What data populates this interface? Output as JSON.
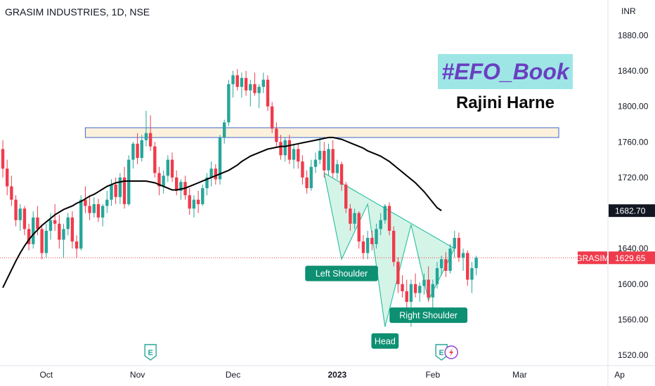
{
  "header": {
    "title": "GRASIM INDUSTRIES, 1D, NSE",
    "currency": "INR"
  },
  "overlay_text": {
    "hashtag": "#EFO_Book",
    "author": "Rajini Harne"
  },
  "colors": {
    "up": "#26a69a",
    "down": "#ef3b4b",
    "ma": "#000000",
    "zone_fill": "#fbf1dc",
    "zone_border": "#3e66cc",
    "pattern_fill": "#b2ebd6",
    "pattern_line": "#34c3a4",
    "price_tag": "#ef3b4b",
    "ma_tag": "#131722",
    "label_bg": "#0d8f72"
  },
  "chart_data": {
    "type": "candlestick",
    "symbol": "GRASIM",
    "last_price": "1629.65",
    "ma_last": "1682.70",
    "y_ticks": [
      "1880.00",
      "1840.00",
      "1800.00",
      "1760.00",
      "1720.00",
      "1680.00",
      "1640.00",
      "1600.00",
      "1560.00",
      "1520.00"
    ],
    "y_tick_values": [
      1880,
      1840,
      1800,
      1760,
      1720,
      1680,
      1640,
      1600,
      1560,
      1520
    ],
    "ylim": [
      1513,
      1900
    ],
    "x_ticks": [
      {
        "label": "Oct",
        "bar": 10
      },
      {
        "label": "Nov",
        "bar": 31
      },
      {
        "label": "Dec",
        "bar": 53
      },
      {
        "label": "2023",
        "bar": 77
      },
      {
        "label": "Feb",
        "bar": 99
      },
      {
        "label": "Mar",
        "bar": 119
      },
      {
        "label": "Ap",
        "bar": 142
      }
    ],
    "ohlc": [
      [
        1752,
        1762,
        1720,
        1730
      ],
      [
        1730,
        1740,
        1700,
        1710
      ],
      [
        1710,
        1722,
        1688,
        1695
      ],
      [
        1695,
        1700,
        1665,
        1672
      ],
      [
        1672,
        1690,
        1660,
        1685
      ],
      [
        1685,
        1688,
        1655,
        1662
      ],
      [
        1662,
        1668,
        1638,
        1645
      ],
      [
        1645,
        1682,
        1640,
        1675
      ],
      [
        1675,
        1688,
        1655,
        1662
      ],
      [
        1662,
        1665,
        1628,
        1635
      ],
      [
        1635,
        1668,
        1630,
        1660
      ],
      [
        1660,
        1680,
        1650,
        1672
      ],
      [
        1672,
        1690,
        1660,
        1668
      ],
      [
        1668,
        1678,
        1640,
        1650
      ],
      [
        1650,
        1668,
        1630,
        1662
      ],
      [
        1662,
        1680,
        1655,
        1675
      ],
      [
        1675,
        1682,
        1640,
        1648
      ],
      [
        1648,
        1655,
        1630,
        1640
      ],
      [
        1640,
        1700,
        1638,
        1695
      ],
      [
        1695,
        1710,
        1680,
        1688
      ],
      [
        1688,
        1700,
        1672,
        1680
      ],
      [
        1680,
        1698,
        1675,
        1690
      ],
      [
        1690,
        1696,
        1670,
        1675
      ],
      [
        1675,
        1690,
        1665,
        1688
      ],
      [
        1688,
        1705,
        1680,
        1695
      ],
      [
        1695,
        1718,
        1688,
        1712
      ],
      [
        1712,
        1720,
        1690,
        1698
      ],
      [
        1698,
        1725,
        1690,
        1720
      ],
      [
        1720,
        1732,
        1685,
        1690
      ],
      [
        1690,
        1745,
        1688,
        1740
      ],
      [
        1740,
        1760,
        1730,
        1758
      ],
      [
        1758,
        1770,
        1735,
        1742
      ],
      [
        1742,
        1768,
        1738,
        1762
      ],
      [
        1762,
        1795,
        1755,
        1770
      ],
      [
        1770,
        1790,
        1750,
        1755
      ],
      [
        1755,
        1760,
        1720,
        1725
      ],
      [
        1725,
        1732,
        1700,
        1710
      ],
      [
        1710,
        1728,
        1702,
        1722
      ],
      [
        1722,
        1745,
        1715,
        1740
      ],
      [
        1740,
        1748,
        1715,
        1720
      ],
      [
        1720,
        1728,
        1700,
        1705
      ],
      [
        1705,
        1718,
        1695,
        1715
      ],
      [
        1715,
        1722,
        1695,
        1700
      ],
      [
        1700,
        1708,
        1678,
        1685
      ],
      [
        1685,
        1700,
        1675,
        1695
      ],
      [
        1695,
        1705,
        1680,
        1690
      ],
      [
        1690,
        1712,
        1688,
        1708
      ],
      [
        1708,
        1725,
        1700,
        1720
      ],
      [
        1720,
        1738,
        1710,
        1730
      ],
      [
        1730,
        1735,
        1712,
        1718
      ],
      [
        1718,
        1768,
        1712,
        1765
      ],
      [
        1765,
        1785,
        1758,
        1782
      ],
      [
        1782,
        1830,
        1778,
        1825
      ],
      [
        1825,
        1840,
        1810,
        1835
      ],
      [
        1835,
        1842,
        1818,
        1822
      ],
      [
        1822,
        1838,
        1810,
        1832
      ],
      [
        1832,
        1840,
        1812,
        1818
      ],
      [
        1818,
        1830,
        1800,
        1825
      ],
      [
        1825,
        1838,
        1812,
        1815
      ],
      [
        1815,
        1825,
        1798,
        1822
      ],
      [
        1822,
        1838,
        1815,
        1830
      ],
      [
        1830,
        1835,
        1795,
        1800
      ],
      [
        1800,
        1805,
        1770,
        1775
      ],
      [
        1775,
        1782,
        1755,
        1760
      ],
      [
        1760,
        1768,
        1740,
        1745
      ],
      [
        1745,
        1765,
        1738,
        1762
      ],
      [
        1762,
        1768,
        1735,
        1740
      ],
      [
        1740,
        1758,
        1730,
        1752
      ],
      [
        1752,
        1758,
        1730,
        1738
      ],
      [
        1738,
        1745,
        1712,
        1720
      ],
      [
        1720,
        1728,
        1702,
        1708
      ],
      [
        1708,
        1740,
        1705,
        1732
      ],
      [
        1732,
        1748,
        1725,
        1740
      ],
      [
        1740,
        1765,
        1735,
        1750
      ],
      [
        1750,
        1760,
        1720,
        1728
      ],
      [
        1728,
        1758,
        1722,
        1752
      ],
      [
        1752,
        1762,
        1720,
        1725
      ],
      [
        1725,
        1740,
        1718,
        1735
      ],
      [
        1735,
        1738,
        1705,
        1712
      ],
      [
        1712,
        1715,
        1680,
        1685
      ],
      [
        1685,
        1690,
        1660,
        1668
      ],
      [
        1668,
        1685,
        1662,
        1680
      ],
      [
        1680,
        1682,
        1640,
        1648
      ],
      [
        1648,
        1655,
        1628,
        1635
      ],
      [
        1635,
        1660,
        1628,
        1652
      ],
      [
        1652,
        1660,
        1638,
        1645
      ],
      [
        1645,
        1668,
        1640,
        1662
      ],
      [
        1662,
        1680,
        1655,
        1672
      ],
      [
        1672,
        1690,
        1668,
        1688
      ],
      [
        1688,
        1692,
        1655,
        1660
      ],
      [
        1660,
        1665,
        1620,
        1625
      ],
      [
        1625,
        1630,
        1590,
        1600
      ],
      [
        1600,
        1610,
        1585,
        1592
      ],
      [
        1592,
        1605,
        1570,
        1580
      ],
      [
        1580,
        1605,
        1552,
        1600
      ],
      [
        1600,
        1612,
        1585,
        1590
      ],
      [
        1590,
        1602,
        1580,
        1598
      ],
      [
        1598,
        1612,
        1588,
        1605
      ],
      [
        1605,
        1620,
        1580,
        1585
      ],
      [
        1585,
        1605,
        1565,
        1600
      ],
      [
        1600,
        1625,
        1595,
        1618
      ],
      [
        1618,
        1632,
        1610,
        1628
      ],
      [
        1628,
        1636,
        1608,
        1615
      ],
      [
        1615,
        1645,
        1612,
        1640
      ],
      [
        1640,
        1660,
        1630,
        1652
      ],
      [
        1652,
        1658,
        1625,
        1630
      ],
      [
        1630,
        1640,
        1615,
        1635
      ],
      [
        1635,
        1638,
        1598,
        1605
      ],
      [
        1605,
        1625,
        1590,
        1618
      ],
      [
        1618,
        1632,
        1610,
        1629.65
      ]
    ],
    "moving_average_start_bar": 0,
    "moving_average": [
      1596,
      1606,
      1616,
      1626,
      1635,
      1643,
      1650,
      1656,
      1661,
      1666,
      1670,
      1674,
      1678,
      1681,
      1684,
      1686,
      1688,
      1691,
      1693,
      1696,
      1699,
      1701,
      1704,
      1707,
      1710,
      1712,
      1714,
      1715,
      1716,
      1716,
      1716,
      1716,
      1716,
      1716,
      1715,
      1714,
      1712,
      1710,
      1708,
      1706,
      1706,
      1707,
      1708,
      1710,
      1712,
      1714,
      1716,
      1718,
      1720,
      1722,
      1724,
      1726,
      1728,
      1731,
      1734,
      1738,
      1741,
      1744,
      1746,
      1748,
      1750,
      1752,
      1753,
      1754,
      1755,
      1755,
      1756,
      1757,
      1758,
      1759,
      1760,
      1761,
      1762,
      1763,
      1764,
      1765,
      1765,
      1764,
      1763,
      1761,
      1759,
      1757,
      1755,
      1753,
      1750,
      1748,
      1746,
      1744,
      1741,
      1738,
      1734,
      1730,
      1726,
      1722,
      1718,
      1714,
      1709,
      1704,
      1698,
      1692,
      1686,
      1682.7
    ],
    "zone": {
      "low": 1765,
      "high": 1776,
      "from_bar": 19,
      "to_bar": 128
    },
    "pattern": {
      "points": [
        [
          74,
          1725
        ],
        [
          78,
          1628
        ],
        [
          84,
          1690
        ],
        [
          88,
          1552
        ],
        [
          94,
          1667
        ],
        [
          98,
          1582
        ],
        [
          104,
          1640
        ]
      ],
      "neckline": [
        [
          74,
          1725
        ],
        [
          104,
          1640
        ]
      ],
      "labels": [
        {
          "text": "Left Shoulder",
          "bar": 78,
          "price": 1612
        },
        {
          "text": "Head",
          "bar": 88,
          "price": 1536
        },
        {
          "text": "Right Shoulder",
          "bar": 98,
          "price": 1565
        }
      ]
    },
    "event_icons": [
      {
        "glyph": "E",
        "bar": 34
      },
      {
        "glyph": "E",
        "bar": 101
      }
    ]
  }
}
